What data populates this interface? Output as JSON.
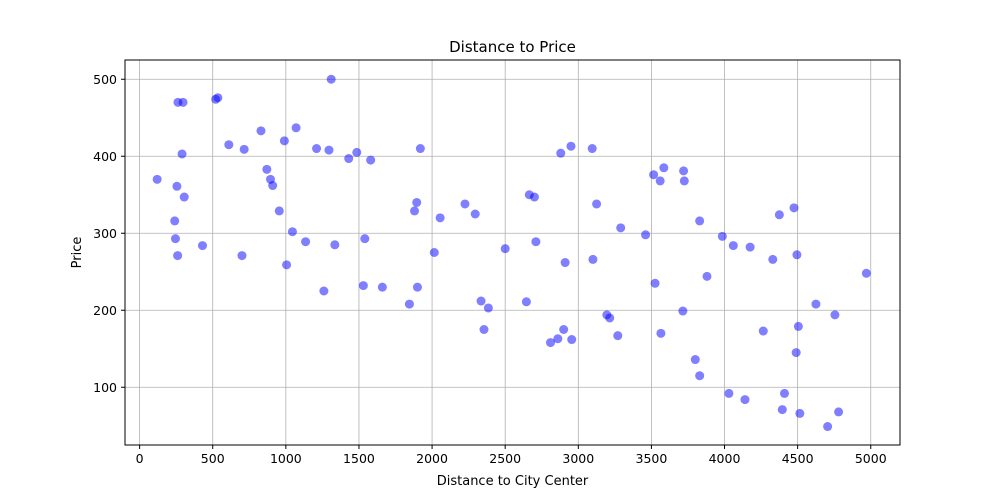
{
  "chart_data": {
    "type": "scatter",
    "title": "Distance to Price",
    "xlabel": "Distance to City Center",
    "ylabel": "Price",
    "xlim": [
      -100,
      5200
    ],
    "ylim": [
      25,
      525
    ],
    "x_ticks": [
      0,
      500,
      1000,
      1500,
      2000,
      2500,
      3000,
      3500,
      4000,
      4500,
      5000
    ],
    "y_ticks": [
      100,
      200,
      300,
      400,
      500
    ],
    "grid": true,
    "marker_color": "#0000ff",
    "marker_alpha": 0.5,
    "points": [
      {
        "x": 120,
        "y": 370
      },
      {
        "x": 240,
        "y": 316
      },
      {
        "x": 245,
        "y": 293
      },
      {
        "x": 255,
        "y": 361
      },
      {
        "x": 260,
        "y": 271
      },
      {
        "x": 262,
        "y": 470
      },
      {
        "x": 290,
        "y": 403
      },
      {
        "x": 297,
        "y": 470
      },
      {
        "x": 305,
        "y": 347
      },
      {
        "x": 430,
        "y": 284
      },
      {
        "x": 520,
        "y": 474
      },
      {
        "x": 535,
        "y": 476
      },
      {
        "x": 610,
        "y": 415
      },
      {
        "x": 700,
        "y": 271
      },
      {
        "x": 715,
        "y": 409
      },
      {
        "x": 830,
        "y": 433
      },
      {
        "x": 870,
        "y": 383
      },
      {
        "x": 895,
        "y": 370
      },
      {
        "x": 910,
        "y": 362
      },
      {
        "x": 955,
        "y": 329
      },
      {
        "x": 990,
        "y": 420
      },
      {
        "x": 1005,
        "y": 259
      },
      {
        "x": 1045,
        "y": 302
      },
      {
        "x": 1070,
        "y": 437
      },
      {
        "x": 1135,
        "y": 289
      },
      {
        "x": 1210,
        "y": 410
      },
      {
        "x": 1260,
        "y": 225
      },
      {
        "x": 1295,
        "y": 408
      },
      {
        "x": 1310,
        "y": 500
      },
      {
        "x": 1335,
        "y": 285
      },
      {
        "x": 1430,
        "y": 397
      },
      {
        "x": 1485,
        "y": 405
      },
      {
        "x": 1530,
        "y": 232
      },
      {
        "x": 1540,
        "y": 293
      },
      {
        "x": 1580,
        "y": 395
      },
      {
        "x": 1660,
        "y": 230
      },
      {
        "x": 1845,
        "y": 208
      },
      {
        "x": 1880,
        "y": 329
      },
      {
        "x": 1895,
        "y": 340
      },
      {
        "x": 1900,
        "y": 230
      },
      {
        "x": 1920,
        "y": 410
      },
      {
        "x": 2015,
        "y": 275
      },
      {
        "x": 2055,
        "y": 320
      },
      {
        "x": 2225,
        "y": 338
      },
      {
        "x": 2295,
        "y": 325
      },
      {
        "x": 2335,
        "y": 212
      },
      {
        "x": 2355,
        "y": 175
      },
      {
        "x": 2385,
        "y": 203
      },
      {
        "x": 2500,
        "y": 280
      },
      {
        "x": 2645,
        "y": 211
      },
      {
        "x": 2665,
        "y": 350
      },
      {
        "x": 2700,
        "y": 347
      },
      {
        "x": 2710,
        "y": 289
      },
      {
        "x": 2810,
        "y": 158
      },
      {
        "x": 2860,
        "y": 163
      },
      {
        "x": 2880,
        "y": 404
      },
      {
        "x": 2900,
        "y": 175
      },
      {
        "x": 2910,
        "y": 262
      },
      {
        "x": 2950,
        "y": 413
      },
      {
        "x": 2955,
        "y": 162
      },
      {
        "x": 3095,
        "y": 410
      },
      {
        "x": 3100,
        "y": 266
      },
      {
        "x": 3125,
        "y": 338
      },
      {
        "x": 3195,
        "y": 194
      },
      {
        "x": 3215,
        "y": 190
      },
      {
        "x": 3270,
        "y": 167
      },
      {
        "x": 3290,
        "y": 307
      },
      {
        "x": 3460,
        "y": 298
      },
      {
        "x": 3515,
        "y": 376
      },
      {
        "x": 3525,
        "y": 235
      },
      {
        "x": 3560,
        "y": 368
      },
      {
        "x": 3565,
        "y": 170
      },
      {
        "x": 3585,
        "y": 385
      },
      {
        "x": 3715,
        "y": 199
      },
      {
        "x": 3720,
        "y": 381
      },
      {
        "x": 3725,
        "y": 368
      },
      {
        "x": 3800,
        "y": 136
      },
      {
        "x": 3830,
        "y": 316
      },
      {
        "x": 3830,
        "y": 115
      },
      {
        "x": 3880,
        "y": 244
      },
      {
        "x": 3985,
        "y": 296
      },
      {
        "x": 4030,
        "y": 92
      },
      {
        "x": 4060,
        "y": 284
      },
      {
        "x": 4140,
        "y": 84
      },
      {
        "x": 4175,
        "y": 282
      },
      {
        "x": 4265,
        "y": 173
      },
      {
        "x": 4330,
        "y": 266
      },
      {
        "x": 4375,
        "y": 324
      },
      {
        "x": 4395,
        "y": 71
      },
      {
        "x": 4410,
        "y": 92
      },
      {
        "x": 4475,
        "y": 333
      },
      {
        "x": 4490,
        "y": 145
      },
      {
        "x": 4495,
        "y": 272
      },
      {
        "x": 4505,
        "y": 179
      },
      {
        "x": 4515,
        "y": 66
      },
      {
        "x": 4625,
        "y": 208
      },
      {
        "x": 4705,
        "y": 49
      },
      {
        "x": 4755,
        "y": 194
      },
      {
        "x": 4780,
        "y": 68
      },
      {
        "x": 4970,
        "y": 248
      }
    ]
  }
}
